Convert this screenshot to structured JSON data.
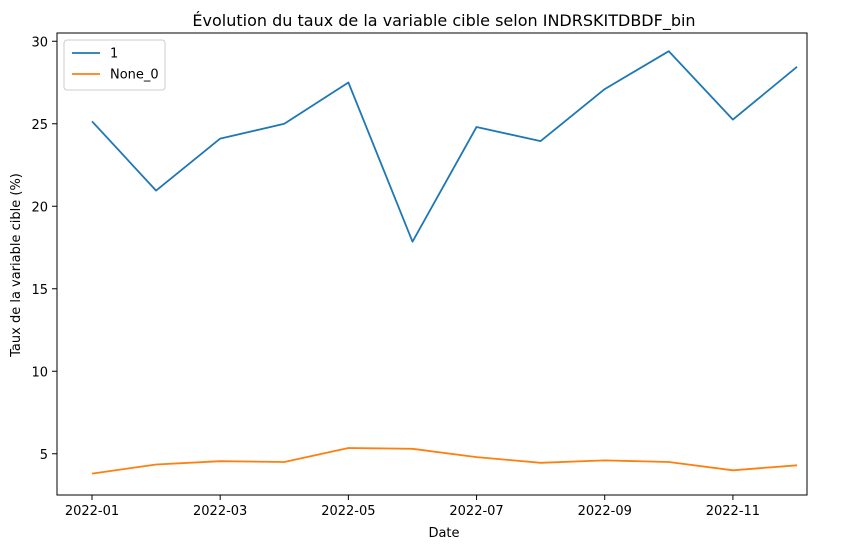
{
  "chart_data": {
    "type": "line",
    "title": "Évolution du taux de la variable cible selon INDRSKITDBDF_bin",
    "xlabel": "Date",
    "ylabel": "Taux de la variable cible (%)",
    "x": [
      "2022-01",
      "2022-02",
      "2022-03",
      "2022-04",
      "2022-05",
      "2022-06",
      "2022-07",
      "2022-08",
      "2022-09",
      "2022-10",
      "2022-11",
      "2022-12"
    ],
    "x_ticks": [
      "2022-01",
      "2022-03",
      "2022-05",
      "2022-07",
      "2022-09",
      "2022-11"
    ],
    "y_ticks": [
      5,
      10,
      15,
      20,
      25,
      30
    ],
    "ylim": [
      2.5,
      30.5
    ],
    "grid": false,
    "legend_position": "upper-left",
    "series": [
      {
        "name": "1",
        "color": "#1f77b4",
        "values": [
          25.15,
          20.95,
          24.1,
          25.0,
          27.5,
          17.85,
          24.8,
          23.95,
          27.1,
          29.4,
          25.25,
          28.45
        ]
      },
      {
        "name": "None_0",
        "color": "#ff7f0e",
        "values": [
          3.8,
          4.35,
          4.55,
          4.5,
          5.35,
          5.3,
          4.8,
          4.45,
          4.6,
          4.5,
          4.0,
          4.3
        ]
      }
    ]
  }
}
